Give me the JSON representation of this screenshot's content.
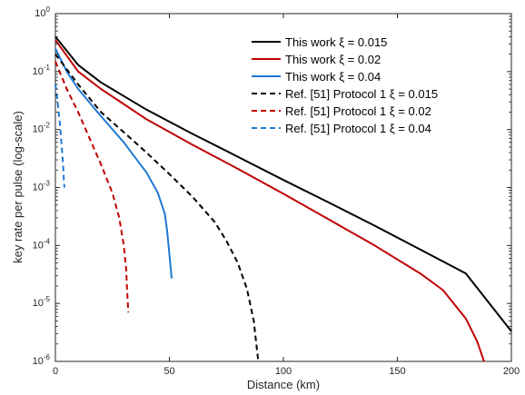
{
  "chart_data": {
    "type": "line",
    "title": "",
    "xlabel": "Distance (km)",
    "ylabel": "key rate per pulse (log-scale)",
    "xlim": [
      0,
      200
    ],
    "ylim": [
      1e-06,
      1
    ],
    "yscale": "log",
    "grid": false,
    "legend_position": "top-right",
    "x_ticks": [
      0,
      50,
      100,
      150,
      200
    ],
    "y_ticks": [
      {
        "base": "10",
        "exp": "-6"
      },
      {
        "base": "10",
        "exp": "-5"
      },
      {
        "base": "10",
        "exp": "-4"
      },
      {
        "base": "10",
        "exp": "-3"
      },
      {
        "base": "10",
        "exp": "-2"
      },
      {
        "base": "10",
        "exp": "-1"
      },
      {
        "base": "10",
        "exp": "0"
      }
    ],
    "series": [
      {
        "name": "This work ξ = 0.015",
        "color": "#000000",
        "dash": "solid",
        "x": [
          0,
          10,
          20,
          40,
          60,
          80,
          100,
          120,
          140,
          160,
          180,
          200
        ],
        "y": [
          0.4,
          0.13,
          0.065,
          0.022,
          0.0085,
          0.0034,
          0.00135,
          0.00055,
          0.00022,
          8.5e-05,
          3.3e-05,
          3.3e-06
        ]
      },
      {
        "name": "This work ξ = 0.02",
        "color": "#c00000",
        "dash": "solid",
        "x": [
          0,
          10,
          20,
          40,
          60,
          80,
          100,
          120,
          140,
          160,
          170,
          180,
          185,
          188
        ],
        "y": [
          0.35,
          0.1,
          0.05,
          0.015,
          0.0055,
          0.0021,
          0.00078,
          0.00028,
          0.0001,
          3.3e-05,
          1.7e-05,
          5.5e-06,
          2.2e-06,
          1e-06
        ]
      },
      {
        "name": "This work ξ = 0.04",
        "color": "#1f78d4",
        "dash": "solid",
        "x": [
          0,
          5,
          10,
          20,
          30,
          40,
          45,
          48,
          49,
          50,
          51
        ],
        "y": [
          0.25,
          0.1,
          0.05,
          0.017,
          0.006,
          0.0018,
          0.0008,
          0.00035,
          0.00018,
          7e-05,
          2.7e-05
        ]
      },
      {
        "name": "Ref. [51] Protocol 1 ξ = 0.015",
        "color": "#000000",
        "dash": "dashed",
        "x": [
          0,
          10,
          20,
          30,
          40,
          50,
          60,
          70,
          75,
          80,
          84,
          87,
          88,
          89
        ],
        "y": [
          0.2,
          0.06,
          0.02,
          0.009,
          0.004,
          0.0017,
          0.0007,
          0.00025,
          0.00012,
          5e-05,
          1.8e-05,
          5e-06,
          2.2e-06,
          1e-06
        ]
      },
      {
        "name": "Ref. [51] Protocol 1 ξ = 0.02",
        "color": "#c00000",
        "dash": "dashed",
        "x": [
          0,
          5,
          10,
          15,
          20,
          25,
          28,
          30,
          31,
          31.5,
          32
        ],
        "y": [
          0.15,
          0.05,
          0.02,
          0.007,
          0.0025,
          0.0008,
          0.0003,
          0.0001,
          4e-05,
          1.5e-05,
          7e-06
        ]
      },
      {
        "name": "Ref. [51] Protocol 1 ξ = 0.04",
        "color": "#1f78d4",
        "dash": "dashed",
        "x": [
          0,
          1,
          2,
          3,
          3.5,
          3.7,
          4
        ],
        "y": [
          0.06,
          0.03,
          0.012,
          0.004,
          0.002,
          0.0013,
          0.001
        ]
      }
    ]
  }
}
